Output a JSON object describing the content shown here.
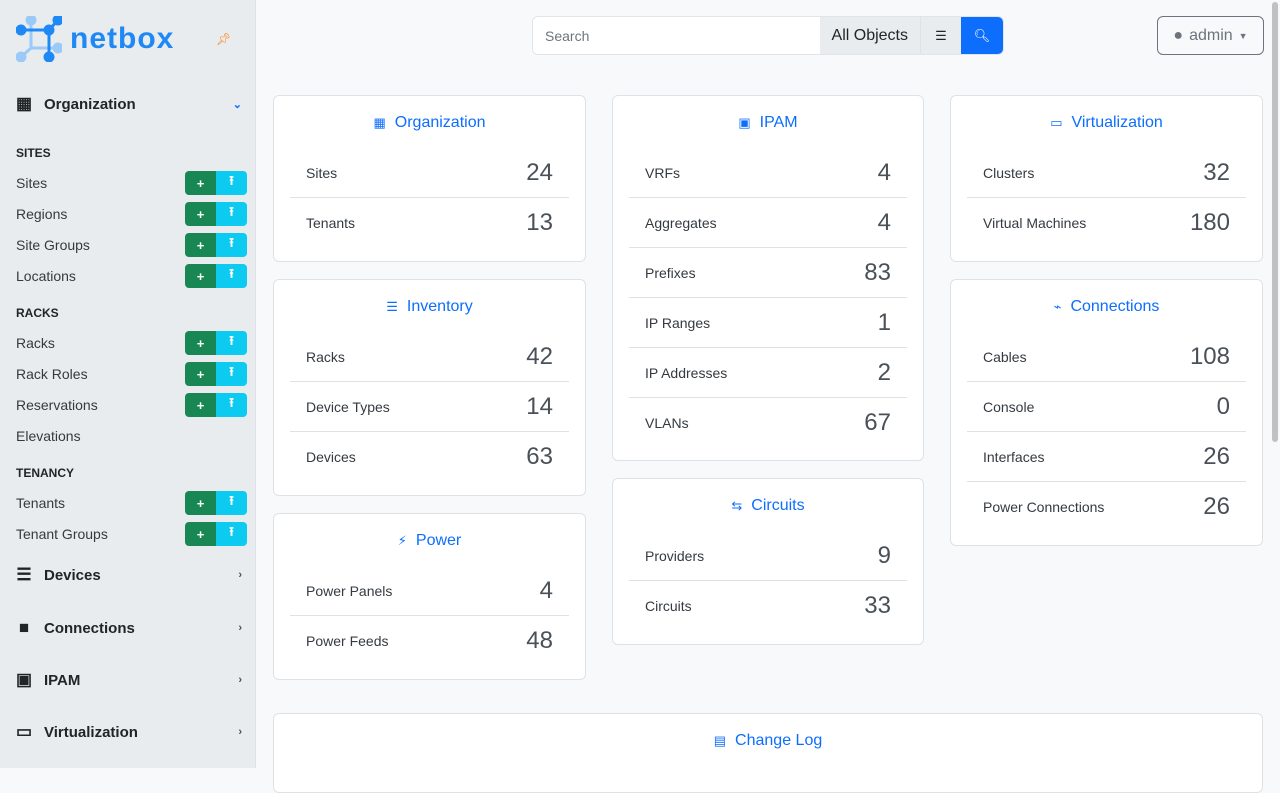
{
  "brand": {
    "name": "netbox",
    "accent": "#0d6efd"
  },
  "sidebar": {
    "organization": {
      "label": "Organization",
      "icon": "building-icon"
    },
    "sections": [
      {
        "title": "SITES",
        "items": [
          {
            "label": "Sites",
            "buttons": true
          },
          {
            "label": "Regions",
            "buttons": true
          },
          {
            "label": "Site Groups",
            "buttons": true
          },
          {
            "label": "Locations",
            "buttons": true
          }
        ]
      },
      {
        "title": "RACKS",
        "items": [
          {
            "label": "Racks",
            "buttons": true
          },
          {
            "label": "Rack Roles",
            "buttons": true
          },
          {
            "label": "Reservations",
            "buttons": true
          },
          {
            "label": "Elevations",
            "buttons": false
          }
        ]
      },
      {
        "title": "TENANCY",
        "items": [
          {
            "label": "Tenants",
            "buttons": true
          },
          {
            "label": "Tenant Groups",
            "buttons": true
          }
        ]
      }
    ],
    "menus": [
      {
        "label": "Devices",
        "icon": "server-icon"
      },
      {
        "label": "Connections",
        "icon": "ethernet-icon"
      },
      {
        "label": "IPAM",
        "icon": "ipam-icon"
      },
      {
        "label": "Virtualization",
        "icon": "monitor-icon"
      }
    ]
  },
  "search": {
    "placeholder": "Search",
    "scope": "All Objects"
  },
  "user": {
    "name": "admin"
  },
  "cards": [
    {
      "title": "Organization",
      "icon": "building-icon",
      "rows": [
        {
          "label": "Sites",
          "count": "24"
        },
        {
          "label": "Tenants",
          "count": "13"
        }
      ]
    },
    {
      "title": "Inventory",
      "icon": "server-icon",
      "rows": [
        {
          "label": "Racks",
          "count": "42"
        },
        {
          "label": "Device Types",
          "count": "14"
        },
        {
          "label": "Devices",
          "count": "63"
        }
      ]
    },
    {
      "title": "Power",
      "icon": "lightning-icon",
      "rows": [
        {
          "label": "Power Panels",
          "count": "4"
        },
        {
          "label": "Power Feeds",
          "count": "48"
        }
      ]
    },
    {
      "title": "IPAM",
      "icon": "ipam-icon",
      "rows": [
        {
          "label": "VRFs",
          "count": "4"
        },
        {
          "label": "Aggregates",
          "count": "4"
        },
        {
          "label": "Prefixes",
          "count": "83"
        },
        {
          "label": "IP Ranges",
          "count": "1"
        },
        {
          "label": "IP Addresses",
          "count": "2"
        },
        {
          "label": "VLANs",
          "count": "67"
        }
      ]
    },
    {
      "title": "Circuits",
      "icon": "transit-icon",
      "rows": [
        {
          "label": "Providers",
          "count": "9"
        },
        {
          "label": "Circuits",
          "count": "33"
        }
      ]
    },
    {
      "title": "Virtualization",
      "icon": "monitor-icon",
      "rows": [
        {
          "label": "Clusters",
          "count": "32"
        },
        {
          "label": "Virtual Machines",
          "count": "180"
        }
      ]
    },
    {
      "title": "Connections",
      "icon": "cable-icon",
      "rows": [
        {
          "label": "Cables",
          "count": "108"
        },
        {
          "label": "Console",
          "count": "0"
        },
        {
          "label": "Interfaces",
          "count": "26"
        },
        {
          "label": "Power Connections",
          "count": "26"
        }
      ]
    },
    {
      "title": "Change Log",
      "icon": "clipboard-clock-icon",
      "rows": []
    }
  ]
}
